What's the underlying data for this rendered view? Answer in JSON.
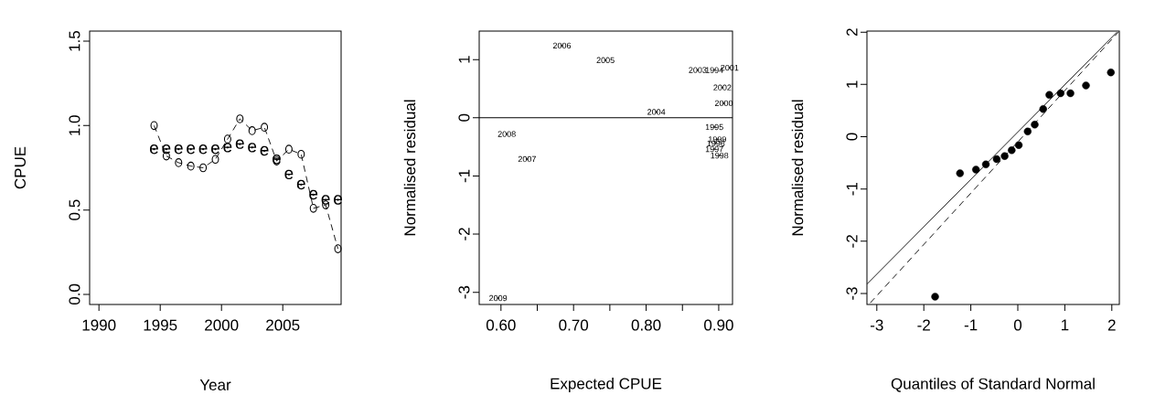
{
  "chart_data": [
    {
      "type": "scatter",
      "xlabel": "Year",
      "ylabel": "CPUE",
      "xlim": [
        1989.24,
        2009.76
      ],
      "ylim": [
        -0.06,
        1.56
      ],
      "xticks": [
        1990,
        1995,
        2000,
        2005
      ],
      "yticks": [
        {
          "value": 0,
          "label": "0.0"
        },
        {
          "value": 0.5,
          "label": "0.5"
        },
        {
          "value": 1,
          "label": "1.0"
        },
        {
          "value": 1.5,
          "label": "1.5"
        }
      ],
      "series": [
        {
          "type": "line",
          "color": "#000000",
          "line_style": "dashed",
          "marker": "circle",
          "x": [
            1994.5,
            1995.5,
            1996.5,
            1997.5,
            1998.5,
            1999.5,
            2000.5,
            2001.5,
            2002.5,
            2003.5,
            2004.5,
            2005.5,
            2006.5,
            2007.5,
            2008.5,
            2009.5
          ],
          "values": [
            1.0,
            0.82,
            0.78,
            0.76,
            0.75,
            0.8,
            0.92,
            1.04,
            0.97,
            0.99,
            0.79,
            0.86,
            0.83,
            0.51,
            0.53,
            0.27
          ]
        },
        {
          "type": "scatter",
          "color": "#000000",
          "marker": "circle",
          "x": [
            1994.5,
            1995.5,
            1996.5,
            1997.5,
            1998.5,
            1999.5,
            2000.5,
            2001.5,
            2002.5,
            2003.5,
            2004.5,
            2005.5,
            2006.5,
            2007.5,
            2008.5,
            2009.5
          ],
          "values": [
            0.86,
            0.86,
            0.86,
            0.86,
            0.86,
            0.86,
            0.87,
            0.89,
            0.87,
            0.85,
            0.8,
            0.71,
            0.65,
            0.59,
            0.56,
            0.56
          ]
        }
      ],
      "annotations": [
        {
          "text": "e",
          "x": 1994.5,
          "y": 0.86
        },
        {
          "text": "e",
          "x": 1995.5,
          "y": 0.86
        },
        {
          "text": "e",
          "x": 1996.5,
          "y": 0.86
        },
        {
          "text": "e",
          "x": 1997.5,
          "y": 0.86
        },
        {
          "text": "e",
          "x": 1998.5,
          "y": 0.86
        },
        {
          "text": "e",
          "x": 1999.5,
          "y": 0.86
        },
        {
          "text": "e",
          "x": 2000.5,
          "y": 0.87
        },
        {
          "text": "e",
          "x": 2001.5,
          "y": 0.89
        },
        {
          "text": "e",
          "x": 2002.5,
          "y": 0.87
        },
        {
          "text": "e",
          "x": 2003.5,
          "y": 0.85
        },
        {
          "text": "e",
          "x": 2004.5,
          "y": 0.8
        },
        {
          "text": "e",
          "x": 2005.5,
          "y": 0.71
        },
        {
          "text": "e",
          "x": 2006.5,
          "y": 0.65
        },
        {
          "text": "e",
          "x": 2007.5,
          "y": 0.59
        },
        {
          "text": "e",
          "x": 2008.5,
          "y": 0.56
        },
        {
          "text": "e",
          "x": 2009.5,
          "y": 0.56
        }
      ]
    },
    {
      "type": "scatter",
      "xlabel": "Expected CPUE",
      "ylabel": "Normalised residual",
      "xlim": [
        0.57,
        0.919
      ],
      "ylim": [
        -3.21,
        1.49
      ],
      "xticks": [
        {
          "value": 0.6,
          "label": "0.60"
        },
        {
          "value": 0.65,
          "label": null
        },
        {
          "value": 0.7,
          "label": "0.70"
        },
        {
          "value": 0.75,
          "label": null
        },
        {
          "value": 0.8,
          "label": "0.80"
        },
        {
          "value": 0.85,
          "label": null
        },
        {
          "value": 0.9,
          "label": "0.90"
        }
      ],
      "yticks": [
        -3,
        -2,
        -1,
        0,
        1
      ],
      "ref_lines": [
        {
          "axis": "y",
          "value": 0
        }
      ],
      "series": [
        {
          "type": "scatter",
          "color": "#000000",
          "marker": "circle",
          "x": [
            0.894,
            0.894,
            0.896,
            0.894,
            0.901,
            0.898,
            0.907,
            0.915,
            0.905,
            0.871,
            0.814,
            0.744,
            0.684,
            0.636,
            0.608,
            0.596
          ],
          "values": [
            0.82,
            -0.16,
            -0.44,
            -0.54,
            -0.65,
            -0.37,
            0.25,
            0.86,
            0.52,
            0.82,
            0.1,
            0.99,
            1.24,
            -0.71,
            -0.28,
            -3.1
          ]
        }
      ],
      "annotations": [
        {
          "text": "1994",
          "x": 0.894,
          "y": 0.82
        },
        {
          "text": "1995",
          "x": 0.894,
          "y": -0.16
        },
        {
          "text": "1996",
          "x": 0.896,
          "y": -0.44
        },
        {
          "text": "1997",
          "x": 0.894,
          "y": -0.54
        },
        {
          "text": "1998",
          "x": 0.901,
          "y": -0.65
        },
        {
          "text": "1999",
          "x": 0.898,
          "y": -0.37
        },
        {
          "text": "2000",
          "x": 0.907,
          "y": 0.25
        },
        {
          "text": "2001",
          "x": 0.915,
          "y": 0.86
        },
        {
          "text": "2002",
          "x": 0.905,
          "y": 0.52
        },
        {
          "text": "2003",
          "x": 0.871,
          "y": 0.82
        },
        {
          "text": "2004",
          "x": 0.814,
          "y": 0.1
        },
        {
          "text": "2005",
          "x": 0.744,
          "y": 0.99
        },
        {
          "text": "2006",
          "x": 0.684,
          "y": 1.24
        },
        {
          "text": "2007",
          "x": 0.636,
          "y": -0.71
        },
        {
          "text": "2008",
          "x": 0.608,
          "y": -0.28
        },
        {
          "text": "2009",
          "x": 0.596,
          "y": -3.1
        }
      ]
    },
    {
      "type": "scatter",
      "xlabel": "Quantiles of Standard Normal",
      "ylabel": "Normalised residual",
      "xlim": [
        -3.21,
        2.16
      ],
      "ylim": [
        -3.21,
        2.02
      ],
      "xticks": [
        -3,
        -2,
        -1,
        0,
        1,
        2
      ],
      "yticks": [
        -3,
        -2,
        -1,
        0,
        1,
        2
      ],
      "series": [
        {
          "type": "scatter",
          "color": "#000000",
          "marker": "circle",
          "x": [
            -1.76,
            -1.23,
            -0.89,
            -0.68,
            -0.45,
            -0.28,
            -0.13,
            0.02,
            0.21,
            0.36,
            0.54,
            0.67,
            0.91,
            1.12,
            1.45,
            1.98
          ],
          "values": [
            -3.06,
            -0.7,
            -0.63,
            -0.53,
            -0.43,
            -0.37,
            -0.26,
            -0.16,
            0.1,
            0.23,
            0.53,
            0.8,
            0.83,
            0.83,
            0.98,
            1.23
          ]
        },
        {
          "type": "line",
          "color": "#000000",
          "line_style": "solid",
          "x": [
            -3.21,
            2.11
          ],
          "values": [
            -2.82,
            2.0
          ]
        },
        {
          "type": "line",
          "color": "#000000",
          "line_style": "dashed",
          "x": [
            -3.14,
            2.14
          ],
          "values": [
            -3.18,
            2.0
          ]
        }
      ]
    }
  ]
}
